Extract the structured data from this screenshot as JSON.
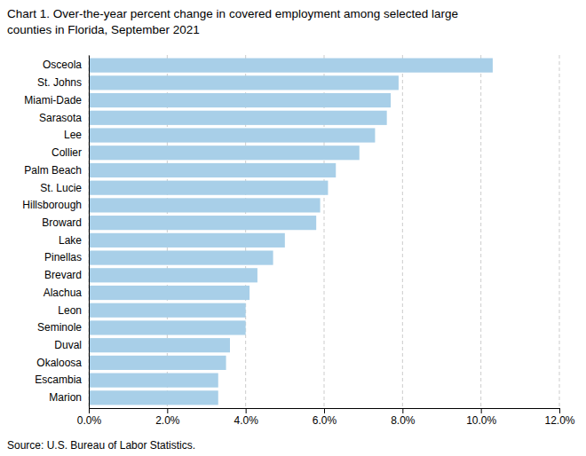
{
  "chart_data": {
    "type": "bar",
    "orientation": "horizontal",
    "title": [
      "Chart 1. Over-the-year percent change in covered employment among selected large",
      "counties in Florida, September 2021"
    ],
    "source": "Source: U.S. Bureau of Labor Statistics.",
    "categories": [
      "Marion",
      "Escambia",
      "Okaloosa",
      "Duval",
      "Seminole",
      "Leon",
      "Alachua",
      "Brevard",
      "Pinellas",
      "Lake",
      "Broward",
      "Hillsborough",
      "St. Lucie",
      "Palm Beach",
      "Collier",
      "Lee",
      "Sarasota",
      "Miami-Dade",
      "St. Johns",
      "Osceola"
    ],
    "values": [
      3.3,
      3.3,
      3.5,
      3.6,
      4.0,
      4.0,
      4.1,
      4.3,
      4.7,
      5.0,
      5.8,
      5.9,
      6.1,
      6.3,
      6.9,
      7.3,
      7.6,
      7.7,
      7.9,
      10.3
    ],
    "color": "#a8cfe8",
    "xlim": [
      0,
      12.0
    ],
    "xticks": [
      {
        "value": 0,
        "label": "0.0%"
      },
      {
        "value": 2,
        "label": "2.0%"
      },
      {
        "value": 4,
        "label": "4.0%"
      },
      {
        "value": 6,
        "label": "6.0%"
      },
      {
        "value": 8,
        "label": "8.0%"
      },
      {
        "value": 10,
        "label": "10.0%"
      },
      {
        "value": 12,
        "label": "12.0%"
      }
    ],
    "grid": true
  }
}
